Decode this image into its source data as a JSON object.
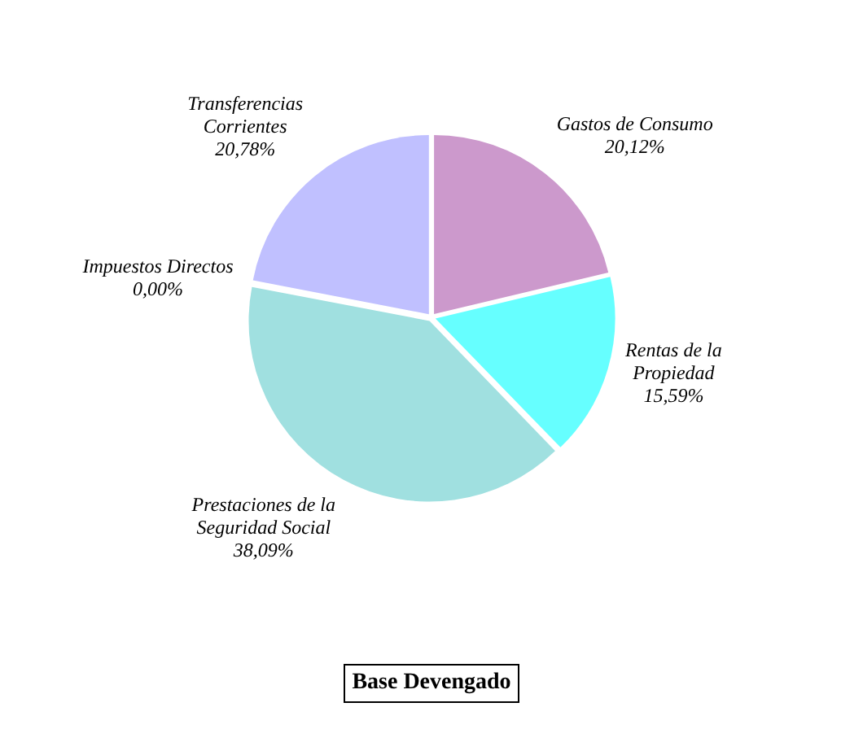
{
  "chart_data": {
    "type": "pie",
    "title": "Base Devengado",
    "categories": [
      "Gastos de Consumo",
      "Rentas de la Propiedad",
      "Prestaciones de la Seguridad Social",
      "Impuestos Directos",
      "Transferencias Corrientes"
    ],
    "values": [
      20.12,
      15.59,
      38.09,
      0,
      20.78
    ],
    "colors": [
      "#cc99cc",
      "#66ffff",
      "#a0e0e0",
      "#807c60",
      "#c0c0ff"
    ],
    "value_labels": [
      "20,12%",
      "15,59%",
      "38,09%",
      "0,00%",
      "20,78%"
    ]
  }
}
